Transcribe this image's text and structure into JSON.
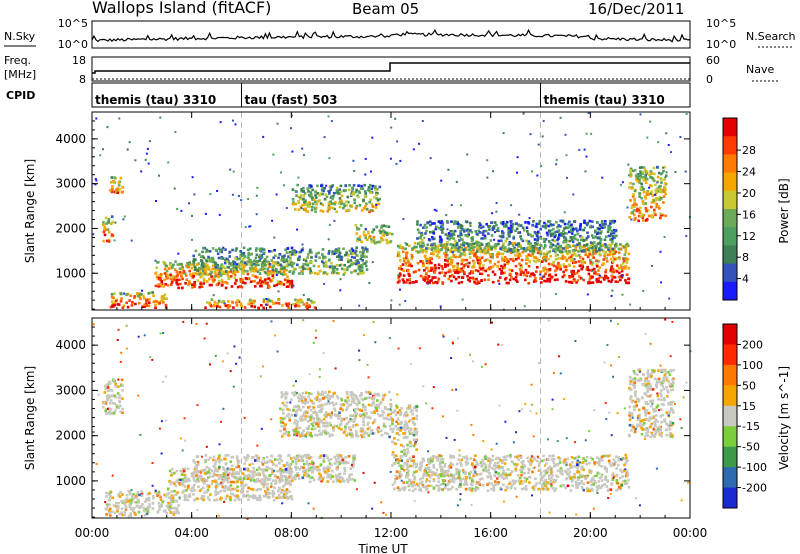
{
  "header": {
    "station": "Wallops Island (fitACF)",
    "beam": "Beam 05",
    "date": "16/Dec/2011"
  },
  "aux": {
    "nsky_label": "N.Sky",
    "nsearch_label": "N.Search",
    "freq_label": "Freq.",
    "freq_unit": "[MHz]",
    "nave_label": "Nave",
    "cpid_label": "CPID",
    "noise_ticks_left": [
      "10^5",
      "10^0"
    ],
    "noise_ticks_right": [
      "10^5",
      "10^0"
    ],
    "freq_ticks": [
      "18",
      "8"
    ],
    "nave_ticks": [
      "60",
      "0"
    ]
  },
  "cpid_segments": [
    {
      "label": "themis (tau) 3310",
      "start_h": 0,
      "end_h": 6
    },
    {
      "label": "tau (fast) 503",
      "start_h": 6,
      "end_h": 18
    },
    {
      "label": "themis (tau) 3310",
      "start_h": 18,
      "end_h": 24
    }
  ],
  "chart_data": [
    {
      "type": "heatmap",
      "title": "Power",
      "ylabel": "Slant Range [km]",
      "xlabel": "Time UT",
      "xlim_hours": [
        0,
        24
      ],
      "ylim_km": [
        180,
        4600
      ],
      "y_ticks": [
        1000,
        2000,
        3000,
        4000
      ],
      "x_tick_labels": [
        "00:00",
        "04:00",
        "08:00",
        "12:00",
        "16:00",
        "20:00",
        "00:00"
      ],
      "colorbar": {
        "label": "Power [dB]",
        "ticks": [
          "4",
          "8",
          "12",
          "16",
          "20",
          "24",
          "28"
        ],
        "colors": [
          "#1a1aff",
          "#3355bb",
          "#3f7f55",
          "#4d9f60",
          "#6aaa58",
          "#c8c832",
          "#f5a700",
          "#ff7a00",
          "#ff3a00",
          "#e30000"
        ]
      },
      "regions": [
        {
          "t0": 0.6,
          "t1": 1.2,
          "r0": 2800,
          "r1": 3200,
          "level": 0.75
        },
        {
          "t0": 0.4,
          "t1": 0.8,
          "r0": 1700,
          "r1": 2300,
          "level": 0.8
        },
        {
          "t0": 0.7,
          "t1": 3.0,
          "r0": 250,
          "r1": 600,
          "level": 0.9
        },
        {
          "t0": 2.5,
          "t1": 8.0,
          "r0": 700,
          "r1": 1300,
          "level": 0.85
        },
        {
          "t0": 4.0,
          "t1": 11.0,
          "r0": 1000,
          "r1": 1600,
          "level": 0.45
        },
        {
          "t0": 4.5,
          "t1": 9.0,
          "r0": 250,
          "r1": 450,
          "level": 0.9
        },
        {
          "t0": 8.0,
          "t1": 11.5,
          "r0": 2400,
          "r1": 3000,
          "level": 0.55
        },
        {
          "t0": 10.5,
          "t1": 12.0,
          "r0": 1700,
          "r1": 2100,
          "level": 0.6
        },
        {
          "t0": 12.2,
          "t1": 21.5,
          "r0": 800,
          "r1": 1700,
          "level": 0.95
        },
        {
          "t0": 13.0,
          "t1": 21.0,
          "r0": 1500,
          "r1": 2200,
          "level": 0.35
        },
        {
          "t0": 21.5,
          "t1": 23.0,
          "r0": 2200,
          "r1": 3400,
          "level": 0.7
        }
      ]
    },
    {
      "type": "heatmap",
      "title": "Velocity",
      "ylabel": "Slant Range [km]",
      "xlabel": "Time UT",
      "xlim_hours": [
        0,
        24
      ],
      "ylim_km": [
        180,
        4600
      ],
      "y_ticks": [
        1000,
        2000,
        3000,
        4000
      ],
      "x_tick_labels": [
        "00:00",
        "04:00",
        "08:00",
        "12:00",
        "16:00",
        "20:00",
        "00:00"
      ],
      "colorbar": {
        "label": "Velocity [m s^-1]",
        "ticks": [
          "200",
          "100",
          "50",
          "15",
          "-15",
          "-50",
          "-100",
          "-200"
        ],
        "colors": [
          "#1a2ad0",
          "#2e6ab0",
          "#3c9a48",
          "#7ccd3c",
          "#c8c8c0",
          "#f5a500",
          "#ff7800",
          "#ff2a00",
          "#e00000"
        ]
      },
      "regions": [
        {
          "t0": 0.4,
          "t1": 1.2,
          "r0": 2500,
          "r1": 3300,
          "level": 0.5
        },
        {
          "t0": 0.5,
          "t1": 3.5,
          "r0": 250,
          "r1": 800,
          "level": 0.5
        },
        {
          "t0": 3.0,
          "t1": 8.0,
          "r0": 600,
          "r1": 1300,
          "level": 0.6
        },
        {
          "t0": 4.0,
          "t1": 10.5,
          "r0": 1000,
          "r1": 1600,
          "level": 0.5
        },
        {
          "t0": 7.5,
          "t1": 12.0,
          "r0": 2000,
          "r1": 3000,
          "level": 0.5
        },
        {
          "t0": 12.0,
          "t1": 21.5,
          "r0": 800,
          "r1": 1600,
          "level": 0.5
        },
        {
          "t0": 12.0,
          "t1": 13.0,
          "r0": 1600,
          "r1": 2700,
          "level": 0.4
        },
        {
          "t0": 21.5,
          "t1": 23.3,
          "r0": 2000,
          "r1": 3500,
          "level": 0.5
        }
      ]
    }
  ]
}
